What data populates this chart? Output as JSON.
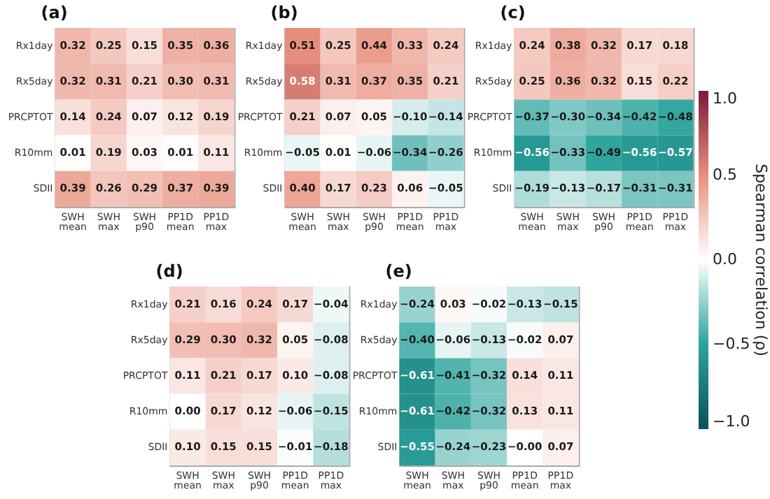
{
  "chart_data": [
    {
      "type": "heatmap",
      "title": "(a)",
      "categories": [
        "SWH mean",
        "SWH max",
        "SWH p90",
        "PP1D mean",
        "PP1D max"
      ],
      "y_categories": [
        "Rx1day",
        "Rx5day",
        "PRCPTOT",
        "R10mm",
        "SDII"
      ],
      "cells": [
        [
          0.32,
          0.25,
          0.15,
          0.35,
          0.36
        ],
        [
          0.32,
          0.31,
          0.21,
          0.3,
          0.31
        ],
        [
          0.14,
          0.24,
          0.07,
          0.12,
          0.19
        ],
        [
          0.01,
          0.19,
          0.03,
          0.01,
          0.11
        ],
        [
          0.39,
          0.26,
          0.29,
          0.37,
          0.39
        ]
      ],
      "cell_labels": [
        [
          "0.32",
          "0.25",
          "0.15",
          "0.35",
          "0.36"
        ],
        [
          "0.32",
          "0.31",
          "0.21",
          "0.30",
          "0.31"
        ],
        [
          "0.14",
          "0.24",
          "0.07",
          "0.12",
          "0.19"
        ],
        [
          "0.01",
          "0.19",
          "0.03",
          "0.01",
          "0.11"
        ],
        [
          "0.39",
          "0.26",
          "0.29",
          "0.37",
          "0.39"
        ]
      ]
    },
    {
      "type": "heatmap",
      "title": "(b)",
      "categories": [
        "SWH mean",
        "SWH max",
        "SWH p90",
        "PP1D mean",
        "PP1D max"
      ],
      "y_categories": [
        "Rx1day",
        "Rx5day",
        "PRCPTOT",
        "R10mm",
        "SDII"
      ],
      "cells": [
        [
          0.51,
          0.25,
          0.44,
          0.33,
          0.24
        ],
        [
          0.58,
          0.31,
          0.37,
          0.35,
          0.21
        ],
        [
          0.21,
          0.07,
          0.05,
          -0.1,
          -0.14
        ],
        [
          -0.05,
          0.01,
          -0.06,
          -0.34,
          -0.26
        ],
        [
          0.4,
          0.17,
          0.23,
          0.06,
          -0.05
        ]
      ],
      "cell_labels": [
        [
          "0.51",
          "0.25",
          "0.44",
          "0.33",
          "0.24"
        ],
        [
          "0.58",
          "0.31",
          "0.37",
          "0.35",
          "0.21"
        ],
        [
          "0.21",
          "0.07",
          "0.05",
          "−0.10",
          "−0.14"
        ],
        [
          "−0.05",
          "0.01",
          "−0.06",
          "−0.34",
          "−0.26"
        ],
        [
          "0.40",
          "0.17",
          "0.23",
          "0.06",
          "−0.05"
        ]
      ]
    },
    {
      "type": "heatmap",
      "title": "(c)",
      "categories": [
        "SWH mean",
        "SWH max",
        "SWH p90",
        "PP1D mean",
        "PP1D max"
      ],
      "y_categories": [
        "Rx1day",
        "Rx5day",
        "PRCPTOT",
        "R10mm",
        "SDII"
      ],
      "clim": [
        -1,
        1
      ],
      "cticks": [
        {
          "value": 1,
          "label": "1.0"
        },
        {
          "value": 0.5,
          "label": "0.5"
        },
        {
          "value": 0,
          "label": "0.0"
        },
        {
          "value": -0.5,
          "label": "−0.5"
        },
        {
          "value": -1,
          "label": "−1.0"
        }
      ],
      "clabel": "Spearman correlation (ρ)",
      "cells": [
        [
          0.24,
          0.38,
          0.32,
          0.17,
          0.18
        ],
        [
          0.25,
          0.36,
          0.32,
          0.15,
          0.22
        ],
        [
          -0.37,
          -0.3,
          -0.34,
          -0.42,
          -0.48
        ],
        [
          -0.56,
          -0.33,
          -0.49,
          -0.56,
          -0.57
        ],
        [
          -0.19,
          -0.13,
          -0.17,
          -0.31,
          -0.31
        ]
      ],
      "cell_labels": [
        [
          "0.24",
          "0.38",
          "0.32",
          "0.17",
          "0.18"
        ],
        [
          "0.25",
          "0.36",
          "0.32",
          "0.15",
          "0.22"
        ],
        [
          "−0.37",
          "−0.30",
          "−0.34",
          "−0.42",
          "−0.48"
        ],
        [
          "−0.56",
          "−0.33",
          "−0.49",
          "−0.56",
          "−0.57"
        ],
        [
          "−0.19",
          "−0.13",
          "−0.17",
          "−0.31",
          "−0.31"
        ]
      ]
    },
    {
      "type": "heatmap",
      "title": "(d)",
      "categories": [
        "SWH mean",
        "SWH max",
        "SWH p90",
        "PP1D mean",
        "PP1D max"
      ],
      "y_categories": [
        "Rx1day",
        "Rx5day",
        "PRCPTOT",
        "R10mm",
        "SDII"
      ],
      "cells": [
        [
          0.21,
          0.16,
          0.24,
          0.17,
          -0.04
        ],
        [
          0.29,
          0.3,
          0.32,
          0.05,
          -0.08
        ],
        [
          0.11,
          0.21,
          0.17,
          0.1,
          -0.08
        ],
        [
          0.0,
          0.17,
          0.12,
          -0.06,
          -0.15
        ],
        [
          0.1,
          0.15,
          0.15,
          -0.01,
          -0.18
        ]
      ],
      "cell_labels": [
        [
          "0.21",
          "0.16",
          "0.24",
          "0.17",
          "−0.04"
        ],
        [
          "0.29",
          "0.30",
          "0.32",
          "0.05",
          "−0.08"
        ],
        [
          "0.11",
          "0.21",
          "0.17",
          "0.10",
          "−0.08"
        ],
        [
          "0.00",
          "0.17",
          "0.12",
          "−0.06",
          "−0.15"
        ],
        [
          "0.10",
          "0.15",
          "0.15",
          "−0.01",
          "−0.18"
        ]
      ]
    },
    {
      "type": "heatmap",
      "title": "(e)",
      "categories": [
        "SWH mean",
        "SWH max",
        "SWH p90",
        "PP1D mean",
        "PP1D max"
      ],
      "y_categories": [
        "Rx1day",
        "Rx5day",
        "PRCPTOT",
        "R10mm",
        "SDII"
      ],
      "cells": [
        [
          -0.24,
          0.03,
          -0.02,
          -0.13,
          -0.15
        ],
        [
          -0.4,
          -0.06,
          -0.13,
          -0.02,
          0.07
        ],
        [
          -0.61,
          -0.41,
          -0.32,
          0.14,
          0.11
        ],
        [
          -0.61,
          -0.42,
          -0.32,
          0.13,
          0.11
        ],
        [
          -0.55,
          -0.24,
          -0.23,
          0.0,
          0.07
        ]
      ],
      "cell_labels": [
        [
          "−0.24",
          "0.03",
          "−0.02",
          "−0.13",
          "−0.15"
        ],
        [
          "−0.40",
          "−0.06",
          "−0.13",
          "−0.02",
          "0.07"
        ],
        [
          "−0.61",
          "−0.41",
          "−0.32",
          "0.14",
          "0.11"
        ],
        [
          "−0.61",
          "−0.42",
          "−0.32",
          "0.13",
          "0.11"
        ],
        [
          "−0.55",
          "−0.24",
          "−0.23",
          "−0.00",
          "0.07"
        ]
      ]
    }
  ]
}
